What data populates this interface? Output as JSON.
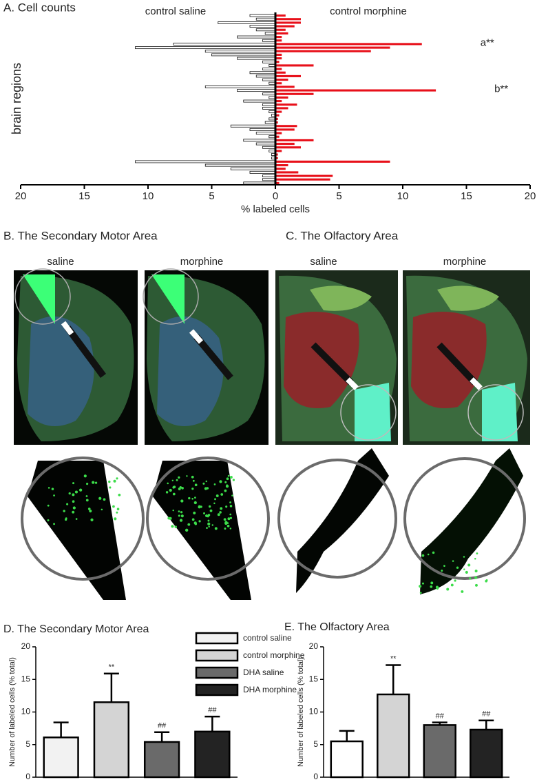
{
  "chart_data": [
    {
      "type": "bar",
      "orientation": "horizontal",
      "title": "A. Cell counts",
      "xlabel": "% labeled cells",
      "ylabel": "brain regions",
      "xlim": [
        -20,
        20
      ],
      "xticks": [
        {
          "value": -20,
          "label": "20"
        },
        {
          "value": -15,
          "label": "15"
        },
        {
          "value": -10,
          "label": "10"
        },
        {
          "value": -5,
          "label": "5"
        },
        0,
        5,
        10,
        15,
        20
      ],
      "series": [
        {
          "name": "control saline",
          "color": "#ffffff",
          "direction": "left",
          "values": [
            2,
            1.5,
            4.5,
            2,
            1.5,
            0.8,
            3,
            1,
            8,
            11,
            5.5,
            5,
            3,
            1,
            0.5,
            1,
            2,
            1.5,
            1,
            0.5,
            5.5,
            3,
            1,
            0.5,
            2.5,
            1,
            1,
            0.5,
            0.3,
            0.5,
            0.8,
            3.5,
            2,
            1.5,
            0.5,
            2.5,
            1.5,
            1,
            0.5,
            0.3,
            0.3,
            11,
            5.5,
            3.5,
            2,
            1,
            1,
            2.5
          ]
        },
        {
          "name": "control morphine",
          "color": "#e8101a",
          "direction": "right",
          "values": [
            0.8,
            2,
            2,
            1.5,
            0.8,
            1,
            0.5,
            0.5,
            11.5,
            9,
            7.5,
            0.5,
            0.5,
            0.3,
            3,
            0.5,
            0.8,
            2,
            1,
            0.5,
            1.5,
            12.6,
            3,
            1,
            0.5,
            1.7,
            1,
            0.5,
            0.3,
            0.2,
            0.2,
            1.7,
            1.5,
            0.5,
            0.3,
            3,
            1.5,
            2,
            0.5,
            0.2,
            0.2,
            9,
            1,
            0.8,
            1.8,
            4.5,
            4.3,
            0.3
          ],
          "annotations": [
            null,
            null,
            null,
            null,
            null,
            null,
            null,
            null,
            "a**",
            null,
            null,
            null,
            null,
            null,
            null,
            null,
            null,
            null,
            null,
            null,
            null,
            "b**",
            null,
            null,
            null,
            null,
            null,
            null,
            null,
            null,
            null,
            null,
            null,
            null,
            null,
            null,
            null,
            null,
            null,
            null,
            null,
            null,
            null,
            null,
            null,
            null,
            null,
            null
          ]
        }
      ]
    },
    {
      "type": "bar",
      "title": "D. The Secondary Motor Area",
      "ylabel": "Number of labeled cells (% total)",
      "ylim": [
        0,
        20
      ],
      "yticks": [
        0,
        5,
        10,
        15,
        20
      ],
      "categories": [
        "control saline",
        "control morphine",
        "DHA saline",
        "DHA morphine"
      ],
      "colors": [
        "#f2f2f2",
        "#d4d4d4",
        "#6a6a6a",
        "#232323"
      ],
      "values": [
        6.1,
        11.5,
        5.4,
        7.0
      ],
      "errors": [
        2.3,
        4.4,
        1.5,
        2.3
      ],
      "annotations": [
        null,
        "**",
        "##",
        "##"
      ]
    },
    {
      "type": "bar",
      "title": "E. The Olfactory Area",
      "ylabel": "Number of labeled cells (% total)",
      "ylim": [
        0,
        20
      ],
      "yticks": [
        0,
        5,
        10,
        15,
        20
      ],
      "colors": [
        "#ffffff",
        "#d4d4d4",
        "#6a6a6a",
        "#232323"
      ],
      "values": [
        5.5,
        12.7,
        8.0,
        7.3
      ],
      "errors": [
        1.6,
        4.5,
        0.4,
        1.4
      ],
      "annotations": [
        null,
        "**",
        "##",
        "##"
      ]
    }
  ],
  "panels": {
    "b": {
      "title": "B. The Secondary Motor Area",
      "labels": [
        "saline",
        "morphine"
      ]
    },
    "c": {
      "title": "C.  The Olfactory Area",
      "labels": [
        "saline",
        "morphine"
      ]
    }
  }
}
